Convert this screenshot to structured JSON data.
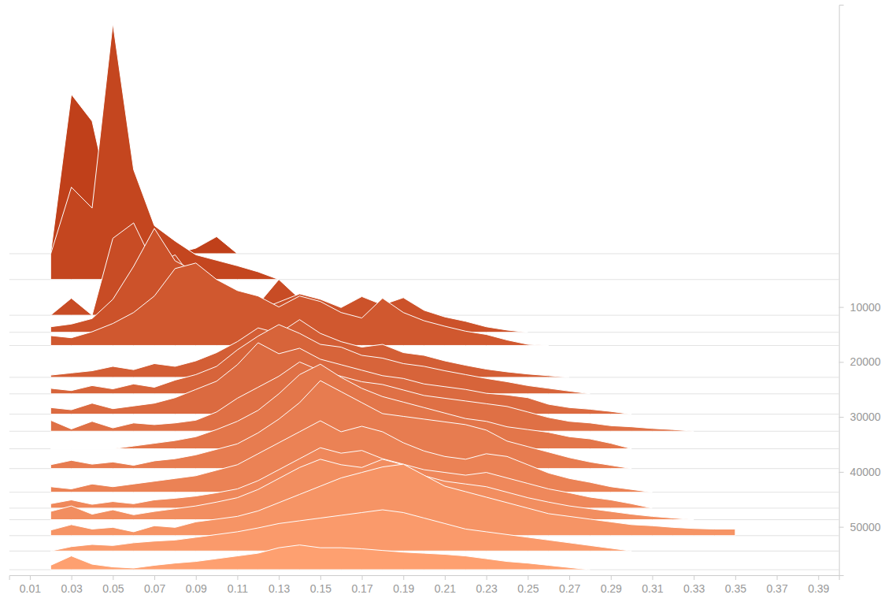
{
  "chart_data": {
    "type": "ridgeline",
    "x": [
      0.02,
      0.03,
      0.04,
      0.05,
      0.06,
      0.07,
      0.08,
      0.09,
      0.1,
      0.11,
      0.12,
      0.13,
      0.14,
      0.15,
      0.16,
      0.17,
      0.18,
      0.19,
      0.2,
      0.21,
      0.22,
      0.23,
      0.24,
      0.25,
      0.26,
      0.27,
      0.28,
      0.29,
      0.3,
      0.31,
      0.32,
      0.33,
      0.34,
      0.35
    ],
    "xlim": [
      0,
      0.4
    ],
    "xticks": [
      0.01,
      0.03,
      0.05,
      0.07,
      0.09,
      0.11,
      0.13,
      0.15,
      0.17,
      0.19,
      0.21,
      0.23,
      0.25,
      0.27,
      0.29,
      0.31,
      0.33,
      0.35,
      0.37,
      0.39
    ],
    "ylim": [
      -45000,
      58800
    ],
    "yticks": [
      10000,
      20000,
      30000,
      40000,
      50000
    ],
    "series": [
      {
        "baseline": 300,
        "color": "#c0401a",
        "values": [
          0,
          29000,
          24100,
          7300,
          2800,
          1400,
          0,
          1000,
          3100,
          0,
          null,
          null,
          null,
          null,
          null,
          null,
          null,
          null,
          null,
          null,
          null,
          null,
          null,
          null,
          null,
          null,
          null,
          null,
          null,
          null,
          null,
          null,
          null,
          null
        ]
      },
      {
        "baseline": 5000,
        "color": "#c4461f",
        "values": [
          4600,
          16800,
          13000,
          46600,
          20000,
          9800,
          7000,
          4500,
          3500,
          2500,
          1400,
          0,
          null,
          null,
          null,
          null,
          null,
          null,
          null,
          null,
          null,
          null,
          null,
          null,
          null,
          null,
          null,
          null,
          null,
          null,
          null,
          null,
          null,
          null
        ]
      },
      {
        "baseline": 11500,
        "color": "#c84c25",
        "values": [
          0,
          3100,
          0,
          14000,
          16800,
          9000,
          11000,
          6000,
          5500,
          4000,
          2000,
          6500,
          3000,
          2000,
          1000,
          0,
          null,
          null,
          null,
          null,
          null,
          null,
          null,
          null,
          null,
          null,
          null,
          null,
          null,
          null,
          null,
          null,
          null,
          null
        ]
      },
      {
        "baseline": 14600,
        "color": "#cc522a",
        "values": [
          1000,
          1500,
          2500,
          6000,
          12000,
          18900,
          13000,
          11000,
          9000,
          6000,
          4000,
          5500,
          7000,
          6000,
          4500,
          6500,
          5000,
          6300,
          4000,
          2800,
          2000,
          1000,
          400,
          0,
          null,
          null,
          null,
          null,
          null,
          null,
          null,
          null,
          null,
          null
        ]
      },
      {
        "baseline": 17000,
        "color": "#d0582f",
        "values": [
          1800,
          1400,
          2500,
          4000,
          6000,
          9000,
          14000,
          15000,
          12000,
          10000,
          9000,
          7000,
          9000,
          8000,
          6000,
          5000,
          8600,
          6000,
          4500,
          3500,
          2600,
          2000,
          1000,
          200,
          0,
          null,
          null,
          null,
          null,
          null,
          null,
          null,
          null,
          null
        ]
      },
      {
        "baseline": 22800,
        "color": "#d35e35",
        "values": [
          400,
          800,
          1200,
          2000,
          1400,
          2500,
          2000,
          3000,
          4500,
          6500,
          9000,
          8000,
          10500,
          8000,
          6500,
          5500,
          6000,
          4500,
          4000,
          3000,
          2200,
          1500,
          1000,
          600,
          300,
          0,
          null,
          null,
          null,
          null,
          null,
          null,
          null,
          null
        ]
      },
      {
        "baseline": 25800,
        "color": "#d7643a",
        "values": [
          1000,
          600,
          1500,
          900,
          1800,
          1200,
          2500,
          3500,
          5000,
          8000,
          10500,
          12600,
          11000,
          9000,
          8500,
          7000,
          6500,
          5500,
          5000,
          4200,
          3500,
          2800,
          2200,
          1500,
          1000,
          500,
          0,
          null,
          null,
          null,
          null,
          null,
          null,
          null
        ]
      },
      {
        "baseline": 29500,
        "color": "#db6a40",
        "values": [
          1200,
          800,
          2000,
          1000,
          1500,
          2000,
          3000,
          4500,
          6000,
          9000,
          13000,
          11000,
          12000,
          10000,
          9000,
          8000,
          7000,
          6500,
          5500,
          5000,
          4500,
          3800,
          3500,
          3000,
          1800,
          1200,
          900,
          500,
          0,
          null,
          null,
          null,
          null,
          null
        ]
      },
      {
        "baseline": 32600,
        "color": "#df7045",
        "values": [
          2000,
          400,
          1800,
          600,
          1500,
          1200,
          1500,
          2000,
          3500,
          6000,
          8000,
          10000,
          12600,
          11000,
          10000,
          9000,
          8500,
          7500,
          6500,
          6000,
          5500,
          5000,
          4500,
          3500,
          2500,
          1800,
          1500,
          1000,
          800,
          500,
          300,
          0,
          null,
          null
        ]
      },
      {
        "baseline": 35800,
        "color": "#e3764a",
        "values": [
          0,
          0,
          0,
          0,
          500,
          1000,
          1500,
          2200,
          3500,
          5000,
          7000,
          10000,
          13500,
          15400,
          13000,
          11000,
          9500,
          8500,
          7500,
          6500,
          5500,
          5000,
          4000,
          3500,
          3000,
          2200,
          1800,
          1000,
          0,
          null,
          null,
          null,
          null,
          null
        ]
      },
      {
        "baseline": 39400,
        "color": "#e77c50",
        "values": [
          700,
          1500,
          800,
          1200,
          600,
          1400,
          1800,
          2500,
          3500,
          4500,
          6500,
          9000,
          12000,
          16000,
          14000,
          12000,
          10000,
          9500,
          9000,
          8500,
          8000,
          7000,
          5000,
          4000,
          3000,
          2000,
          1200,
          600,
          0,
          null,
          null,
          null,
          null,
          null
        ]
      },
      {
        "baseline": 43700,
        "color": "#eb8255",
        "values": [
          1000,
          600,
          1500,
          1000,
          1500,
          2000,
          2500,
          3000,
          4000,
          5000,
          7000,
          9000,
          11000,
          13000,
          11000,
          12000,
          11000,
          9000,
          7500,
          6500,
          6000,
          7000,
          6500,
          5000,
          3500,
          2500,
          1800,
          1000,
          500,
          0,
          null,
          null,
          null,
          null
        ]
      },
      {
        "baseline": 46600,
        "color": "#ef885b",
        "values": [
          800,
          1500,
          700,
          1200,
          800,
          1500,
          1800,
          2200,
          2800,
          3500,
          5000,
          7000,
          9000,
          11000,
          10000,
          10500,
          9000,
          8000,
          7000,
          6500,
          6000,
          6500,
          5500,
          4500,
          3500,
          2800,
          2000,
          1500,
          800,
          0,
          null,
          null,
          null,
          null
        ]
      },
      {
        "baseline": 48700,
        "color": "#f28e60",
        "values": [
          1500,
          2500,
          1000,
          1800,
          900,
          1500,
          2000,
          2500,
          3200,
          4000,
          5500,
          7500,
          9500,
          11000,
          10000,
          9500,
          11000,
          10000,
          8000,
          7000,
          6500,
          6000,
          5000,
          4000,
          3200,
          2500,
          2000,
          1500,
          1000,
          600,
          300,
          0,
          null,
          null
        ]
      },
      {
        "baseline": 51600,
        "color": "#f69465",
        "values": [
          1000,
          2000,
          1200,
          1500,
          700,
          1800,
          1500,
          2500,
          3000,
          3500,
          4500,
          6000,
          7500,
          9000,
          10500,
          11500,
          12500,
          13000,
          11000,
          9000,
          8000,
          7000,
          6000,
          5000,
          4000,
          3500,
          3000,
          2500,
          2000,
          1800,
          1500,
          1300,
          1200,
          1200
        ]
      },
      {
        "baseline": 54400,
        "color": "#fa9a6b",
        "values": [
          0,
          800,
          1200,
          1000,
          1500,
          1800,
          2000,
          2500,
          3000,
          3500,
          4200,
          5000,
          5500,
          6000,
          6500,
          7000,
          7500,
          7000,
          6000,
          5000,
          4000,
          3500,
          3000,
          2500,
          2000,
          1500,
          1000,
          500,
          0,
          null,
          null,
          null,
          null,
          null
        ]
      },
      {
        "baseline": 57800,
        "color": "#fea070",
        "values": [
          800,
          2500,
          1000,
          500,
          300,
          800,
          1200,
          1500,
          2000,
          2500,
          3000,
          4000,
          4500,
          4000,
          4000,
          3800,
          3500,
          3200,
          3000,
          2800,
          2500,
          2000,
          1500,
          1200,
          800,
          400,
          0,
          null,
          null,
          null,
          null,
          null,
          null,
          null
        ]
      }
    ]
  }
}
